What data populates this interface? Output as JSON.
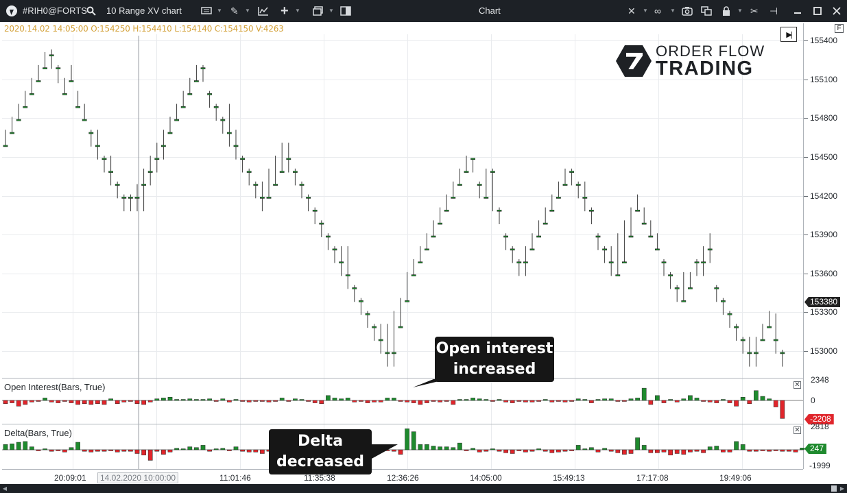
{
  "titlebar": {
    "symbol": "#RIH0@FORTS",
    "chart_type": "10 Range XV chart",
    "title": "Chart",
    "icons": [
      "app-logo-icon",
      "search-icon",
      "template-icon",
      "pencil-icon",
      "indicator-icon",
      "crosshair-plus-icon",
      "window-icon",
      "layout-icon",
      "cursor-icon",
      "link-icon",
      "camera-icon",
      "copy-icon",
      "lock-icon",
      "tools-icon",
      "pin-icon",
      "minimize-icon",
      "maximize-icon",
      "close-icon"
    ]
  },
  "ohlc_info": "2020.14.02 14:05:00 O:154250 H:154410 L:154140 C:154150 V:4263",
  "brand": {
    "line1": "ORDER FLOW",
    "line2": "TRADING"
  },
  "panels": {
    "oi_title": "Open Interest(Bars, True)",
    "delta_title": "Delta(Bars, True)"
  },
  "price_axis": {
    "ticks": [
      "155400",
      "155100",
      "154800",
      "154500",
      "154200",
      "153900",
      "153600",
      "153300",
      "153000"
    ],
    "current_price": "153380",
    "oi_ticks": [
      "2348",
      "0"
    ],
    "oi_current": "-2208",
    "delta_ticks": [
      "2818",
      "-1999"
    ],
    "delta_current": "247"
  },
  "time_axis": [
    "20:09:01",
    "14.02.2020 10:00:00",
    "11:01:46",
    "11:35:38",
    "12:36:26",
    "14:05:00",
    "15:49:13",
    "17:17:08",
    "19:49:06"
  ],
  "annotations": {
    "oi": [
      "Open interest",
      "increased"
    ],
    "delta": [
      "Delta",
      "decreased"
    ]
  },
  "colors": {
    "bull": "#1f8a2e",
    "bear": "#e0252b",
    "titlebar": "#1d2126",
    "info": "#d4a23a",
    "oi_tag": "#e0252b",
    "delta_tag": "#1f8a2e",
    "price_tag": "#222222"
  },
  "chart_data": {
    "type": "candlestick",
    "title": "",
    "tick_size": 10,
    "candles": [
      [
        154590,
        154590,
        154710,
        154580
      ],
      [
        154690,
        154690,
        154810,
        154680
      ],
      [
        154790,
        154790,
        154910,
        154780
      ],
      [
        154890,
        154890,
        155010,
        154880
      ],
      [
        154990,
        154990,
        155110,
        154980
      ],
      [
        155090,
        155090,
        155210,
        155080
      ],
      [
        155190,
        155190,
        155310,
        155180
      ],
      [
        155290,
        155290,
        155330,
        155180
      ],
      [
        155190,
        155190,
        155210,
        155070
      ],
      [
        154990,
        154990,
        155110,
        154980
      ],
      [
        155090,
        155090,
        155210,
        155080
      ],
      [
        154890,
        154890,
        155010,
        154880
      ],
      [
        154790,
        154790,
        154910,
        154780
      ],
      [
        154690,
        154690,
        154710,
        154580
      ],
      [
        154590,
        154590,
        154710,
        154480
      ],
      [
        154490,
        154490,
        154510,
        154380
      ],
      [
        154390,
        154390,
        154510,
        154280
      ],
      [
        154290,
        154290,
        154310,
        154180
      ],
      [
        154190,
        154190,
        154210,
        154080
      ],
      [
        154190,
        154190,
        154210,
        154080
      ],
      [
        154190,
        154190,
        154290,
        154080
      ],
      [
        154290,
        154290,
        154410,
        154080
      ],
      [
        154390,
        154390,
        154510,
        154280
      ],
      [
        154490,
        154490,
        154610,
        154380
      ],
      [
        154590,
        154590,
        154710,
        154480
      ],
      [
        154690,
        154690,
        154810,
        154680
      ],
      [
        154790,
        154790,
        154910,
        154780
      ],
      [
        154890,
        154890,
        155010,
        154880
      ],
      [
        154990,
        154990,
        155110,
        154980
      ],
      [
        155090,
        155090,
        155210,
        155080
      ],
      [
        155190,
        155190,
        155210,
        155080
      ],
      [
        154990,
        154990,
        155010,
        154880
      ],
      [
        154890,
        154890,
        154910,
        154780
      ],
      [
        154790,
        154790,
        154810,
        154680
      ],
      [
        154690,
        154690,
        154910,
        154580
      ],
      [
        154590,
        154590,
        154710,
        154480
      ],
      [
        154490,
        154490,
        154510,
        154380
      ],
      [
        154390,
        154390,
        154410,
        154280
      ],
      [
        154290,
        154290,
        154310,
        154180
      ],
      [
        154190,
        154190,
        154310,
        154080
      ],
      [
        154190,
        154190,
        154410,
        154180
      ],
      [
        154290,
        154290,
        154510,
        154280
      ],
      [
        154390,
        154390,
        154610,
        154380
      ],
      [
        154490,
        154490,
        154610,
        154380
      ],
      [
        154390,
        154390,
        154410,
        154280
      ],
      [
        154290,
        154290,
        154310,
        154180
      ],
      [
        154190,
        154190,
        154210,
        154080
      ],
      [
        154090,
        154090,
        154110,
        153980
      ],
      [
        153990,
        153990,
        154010,
        153880
      ],
      [
        153890,
        153890,
        153910,
        153780
      ],
      [
        153790,
        153790,
        153810,
        153680
      ],
      [
        153690,
        153690,
        153810,
        153580
      ],
      [
        153590,
        153590,
        153810,
        153480
      ],
      [
        153490,
        153490,
        153510,
        153380
      ],
      [
        153390,
        153390,
        153410,
        153280
      ],
      [
        153290,
        153290,
        153310,
        153180
      ],
      [
        153190,
        153190,
        153210,
        153080
      ],
      [
        153090,
        153090,
        153210,
        152980
      ],
      [
        152990,
        152990,
        153210,
        152880
      ],
      [
        152990,
        152990,
        153310,
        152880
      ],
      [
        153190,
        153190,
        153410,
        153180
      ],
      [
        153390,
        153390,
        153610,
        153380
      ],
      [
        153590,
        153590,
        153710,
        153580
      ],
      [
        153690,
        153690,
        153810,
        153680
      ],
      [
        153790,
        153790,
        153910,
        153780
      ],
      [
        153890,
        153890,
        154010,
        153880
      ],
      [
        153990,
        153990,
        154110,
        153980
      ],
      [
        154090,
        154090,
        154210,
        154080
      ],
      [
        154190,
        154190,
        154310,
        154180
      ],
      [
        154290,
        154290,
        154410,
        154280
      ],
      [
        154390,
        154390,
        154510,
        154380
      ],
      [
        154490,
        154490,
        154490,
        154380
      ],
      [
        154290,
        154290,
        154310,
        154180
      ],
      [
        154190,
        154190,
        154410,
        154180
      ],
      [
        154390,
        154390,
        154410,
        154080
      ],
      [
        154090,
        154090,
        154110,
        153980
      ],
      [
        153890,
        153890,
        153910,
        153780
      ],
      [
        153790,
        153790,
        153810,
        153680
      ],
      [
        153690,
        153690,
        153710,
        153580
      ],
      [
        153690,
        153690,
        153810,
        153580
      ],
      [
        153790,
        153790,
        153910,
        153780
      ],
      [
        153890,
        153890,
        154010,
        153880
      ],
      [
        153990,
        153990,
        154110,
        153980
      ],
      [
        154090,
        154090,
        154210,
        154080
      ],
      [
        154190,
        154190,
        154310,
        154180
      ],
      [
        154290,
        154290,
        154410,
        154280
      ],
      [
        154390,
        154390,
        154410,
        154280
      ],
      [
        154290,
        154290,
        154310,
        154180
      ],
      [
        154190,
        154190,
        154310,
        154080
      ],
      [
        154090,
        154090,
        154110,
        153980
      ],
      [
        153890,
        153890,
        153910,
        153780
      ],
      [
        153790,
        153790,
        153810,
        153680
      ],
      [
        153690,
        153690,
        153810,
        153580
      ],
      [
        153590,
        153590,
        153910,
        153580
      ],
      [
        153690,
        153690,
        154010,
        153680
      ],
      [
        153890,
        153890,
        154110,
        153880
      ],
      [
        154090,
        154090,
        154210,
        154080
      ],
      [
        153990,
        153990,
        154110,
        153980
      ],
      [
        153890,
        153890,
        154010,
        153880
      ],
      [
        153790,
        153790,
        153910,
        153780
      ],
      [
        153690,
        153690,
        153710,
        153580
      ],
      [
        153590,
        153590,
        153610,
        153480
      ],
      [
        153490,
        153490,
        153510,
        153380
      ],
      [
        153390,
        153390,
        153610,
        153380
      ],
      [
        153490,
        153490,
        153610,
        153480
      ],
      [
        153690,
        153690,
        153710,
        153580
      ],
      [
        153690,
        153690,
        153810,
        153580
      ],
      [
        153790,
        153790,
        153910,
        153680
      ],
      [
        153490,
        153490,
        153510,
        153380
      ],
      [
        153390,
        153390,
        153410,
        153280
      ],
      [
        153290,
        153290,
        153310,
        153180
      ],
      [
        153190,
        153190,
        153210,
        153080
      ],
      [
        153090,
        153090,
        153110,
        152980
      ],
      [
        152990,
        152990,
        153110,
        152880
      ],
      [
        152990,
        152990,
        153110,
        152880
      ],
      [
        153090,
        153090,
        153210,
        153080
      ],
      [
        153190,
        153190,
        153310,
        153180
      ],
      [
        153090,
        153090,
        153290,
        152980
      ],
      [
        152990,
        152990,
        153010,
        152880
      ]
    ],
    "open_interest": [
      -400,
      -300,
      -700,
      -500,
      -200,
      -100,
      300,
      -200,
      -300,
      -100,
      -300,
      -500,
      -400,
      -500,
      -400,
      -500,
      200,
      -400,
      -200,
      -100,
      -400,
      -500,
      -200,
      200,
      300,
      400,
      100,
      100,
      200,
      100,
      100,
      200,
      -100,
      200,
      -200,
      100,
      -100,
      -200,
      -100,
      -100,
      -200,
      -100,
      300,
      -100,
      200,
      100,
      -100,
      -300,
      -400,
      600,
      300,
      200,
      300,
      -200,
      -100,
      -300,
      -200,
      -200,
      300,
      300,
      -100,
      -200,
      -300,
      -500,
      -300,
      -100,
      -200,
      -100,
      -500,
      100,
      100,
      300,
      200,
      100,
      -100,
      100,
      -200,
      -300,
      -100,
      -200,
      -200,
      -100,
      100,
      -200,
      -100,
      -200,
      -100,
      200,
      100,
      -300,
      100,
      200,
      200,
      -100,
      -100,
      200,
      300,
      1500,
      -500,
      600,
      -300,
      100,
      -200,
      200,
      600,
      300,
      -100,
      -200,
      -300,
      100,
      -300,
      -700,
      400,
      -400,
      1200,
      500,
      200,
      -800,
      -2208
    ],
    "delta": [
      700,
      800,
      1000,
      1100,
      400,
      -100,
      100,
      -200,
      -100,
      -300,
      300,
      1000,
      -200,
      -300,
      -200,
      -200,
      -100,
      -300,
      -200,
      -200,
      -500,
      -700,
      -1400,
      -200,
      -600,
      -300,
      200,
      100,
      400,
      300,
      600,
      -200,
      100,
      200,
      -100,
      400,
      -200,
      -300,
      -300,
      -500,
      -200,
      -400,
      100,
      -400,
      200,
      -200,
      100,
      200,
      -200,
      400,
      100,
      300,
      -200,
      100,
      -200,
      300,
      -200,
      -100,
      -100,
      -200,
      -600,
      2800,
      2400,
      700,
      700,
      500,
      400,
      400,
      300,
      900,
      -100,
      200,
      -300,
      -200,
      100,
      -200,
      -400,
      -500,
      -100,
      -300,
      -200,
      100,
      -200,
      -400,
      -300,
      -200,
      -100,
      600,
      100,
      300,
      -300,
      200,
      -200,
      -400,
      -600,
      -500,
      1600,
      600,
      -400,
      -400,
      -300,
      -700,
      -500,
      -600,
      -300,
      -200,
      -400,
      400,
      500,
      -300,
      -300,
      1100,
      700,
      -200,
      -200,
      -100,
      -200,
      -100,
      -200,
      -200,
      -300,
      247
    ]
  }
}
